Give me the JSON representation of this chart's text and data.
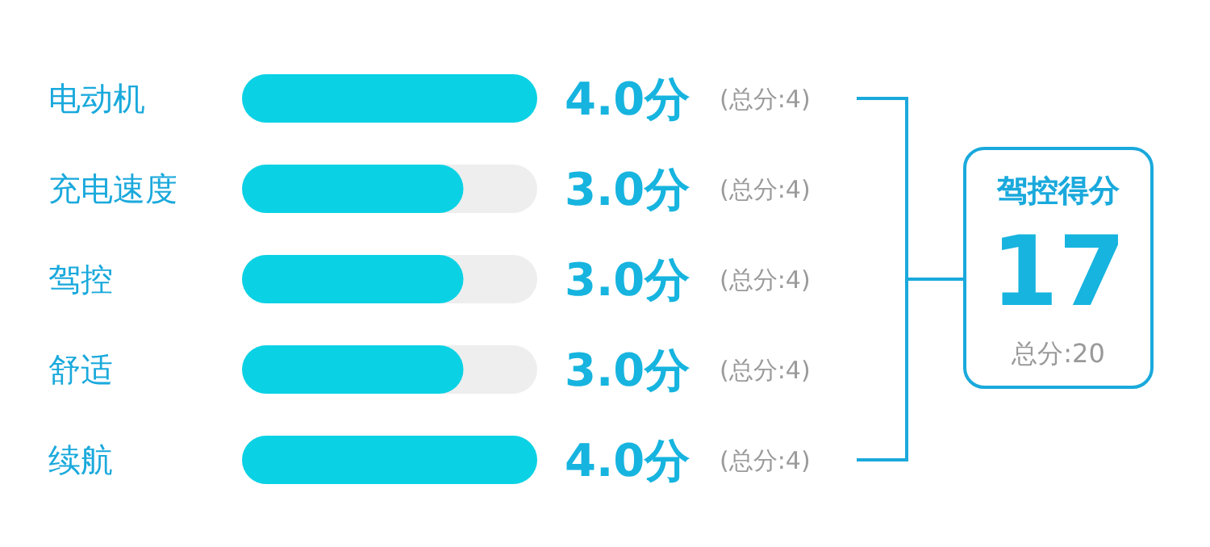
{
  "chart_data": {
    "type": "bar",
    "orientation": "horizontal",
    "categories": [
      "电动机",
      "充电速度",
      "驾控",
      "舒适",
      "续航"
    ],
    "values": [
      4,
      3,
      3,
      3,
      4
    ],
    "value_labels": [
      "4.0分",
      "3.0分",
      "3.0分",
      "3.0分",
      "4.0分"
    ],
    "color": "#0ad2e4",
    "xlim": [
      0,
      4
    ],
    "tick_labels": "y",
    "annotations": [
      "(总分:4)",
      "(总分:4)",
      "(总分:4)",
      "(总分:4)",
      "(总分:4)",
      "驾控得分",
      "17",
      "总分:20"
    ]
  }
}
